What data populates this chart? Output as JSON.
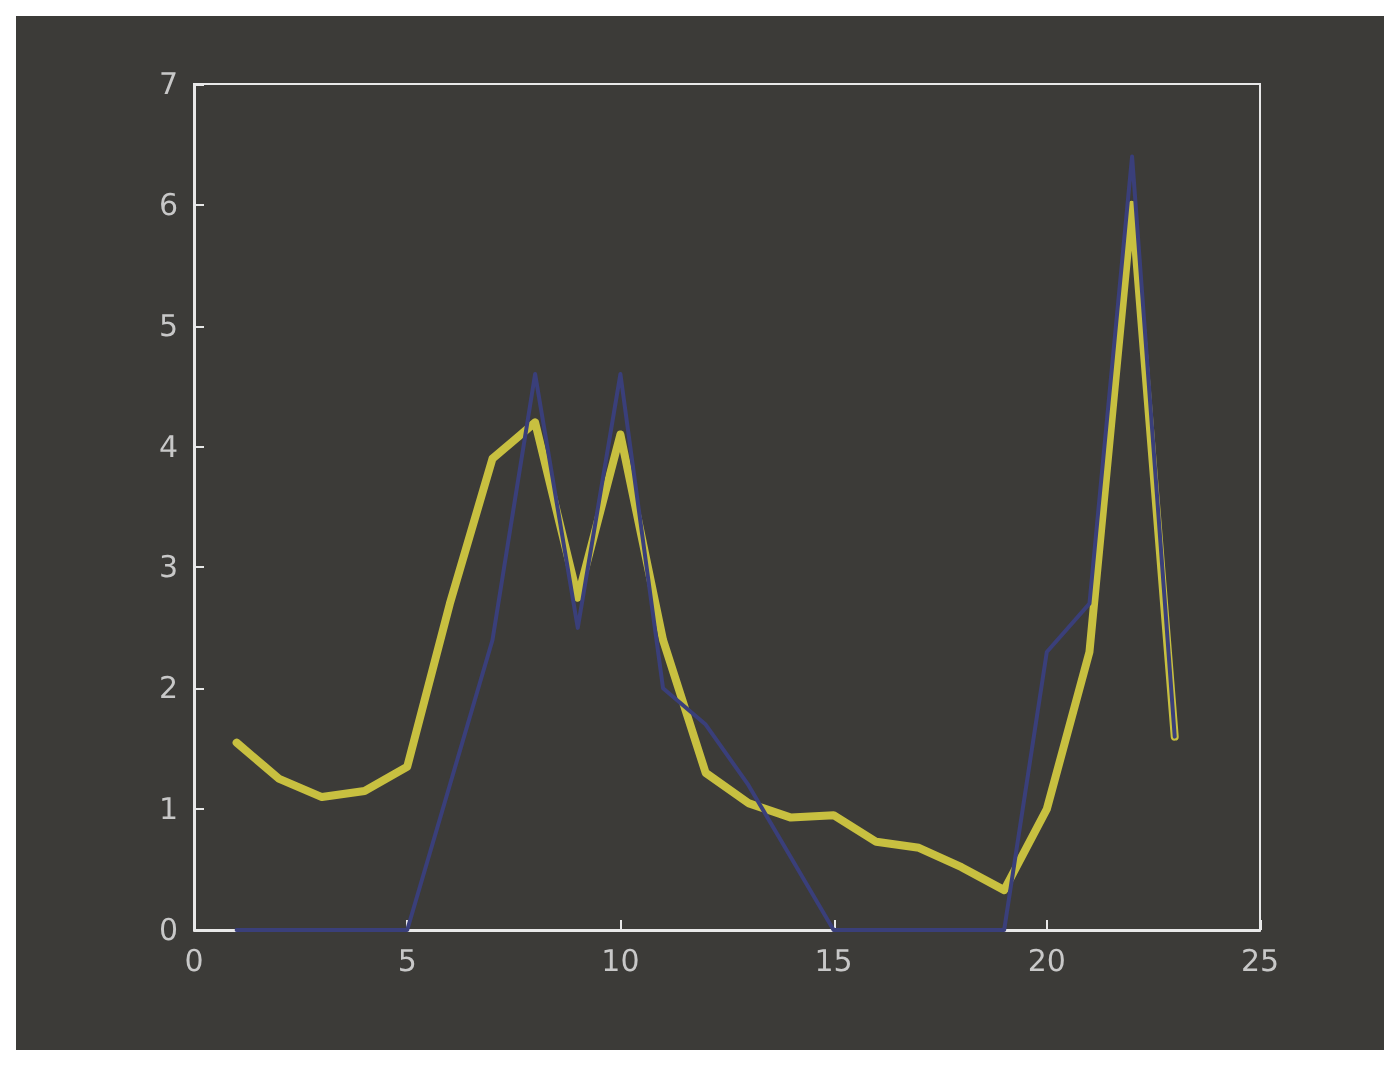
{
  "chart_data": {
    "type": "line",
    "x": [
      1,
      2,
      3,
      4,
      5,
      6,
      7,
      8,
      9,
      10,
      11,
      12,
      13,
      14,
      15,
      16,
      17,
      18,
      19,
      20,
      21,
      22,
      23
    ],
    "series": [
      {
        "color": "#c8c040",
        "values": [
          1.55,
          1.25,
          1.1,
          1.15,
          1.35,
          2.7,
          3.9,
          4.2,
          2.75,
          4.1,
          2.4,
          1.3,
          1.05,
          0.93,
          0.95,
          0.73,
          0.68,
          0.52,
          0.33,
          1.0,
          2.3,
          6.0,
          1.6
        ]
      },
      {
        "color": "#3a3f7a",
        "values": [
          0,
          0,
          0,
          0,
          0,
          1.2,
          2.4,
          4.6,
          2.5,
          4.6,
          2.0,
          1.7,
          1.2,
          0.6,
          0,
          0,
          0,
          0,
          0,
          2.3,
          2.7,
          6.4,
          1.6
        ]
      }
    ],
    "xlim": [
      0,
      25
    ],
    "xticks": [
      0,
      5,
      10,
      15,
      20,
      25
    ],
    "ylim": [
      0,
      7
    ],
    "yticks": [
      0,
      1,
      2,
      3,
      4,
      5,
      6,
      7
    ],
    "grid": false,
    "marker": "none",
    "line_style": "solid"
  }
}
